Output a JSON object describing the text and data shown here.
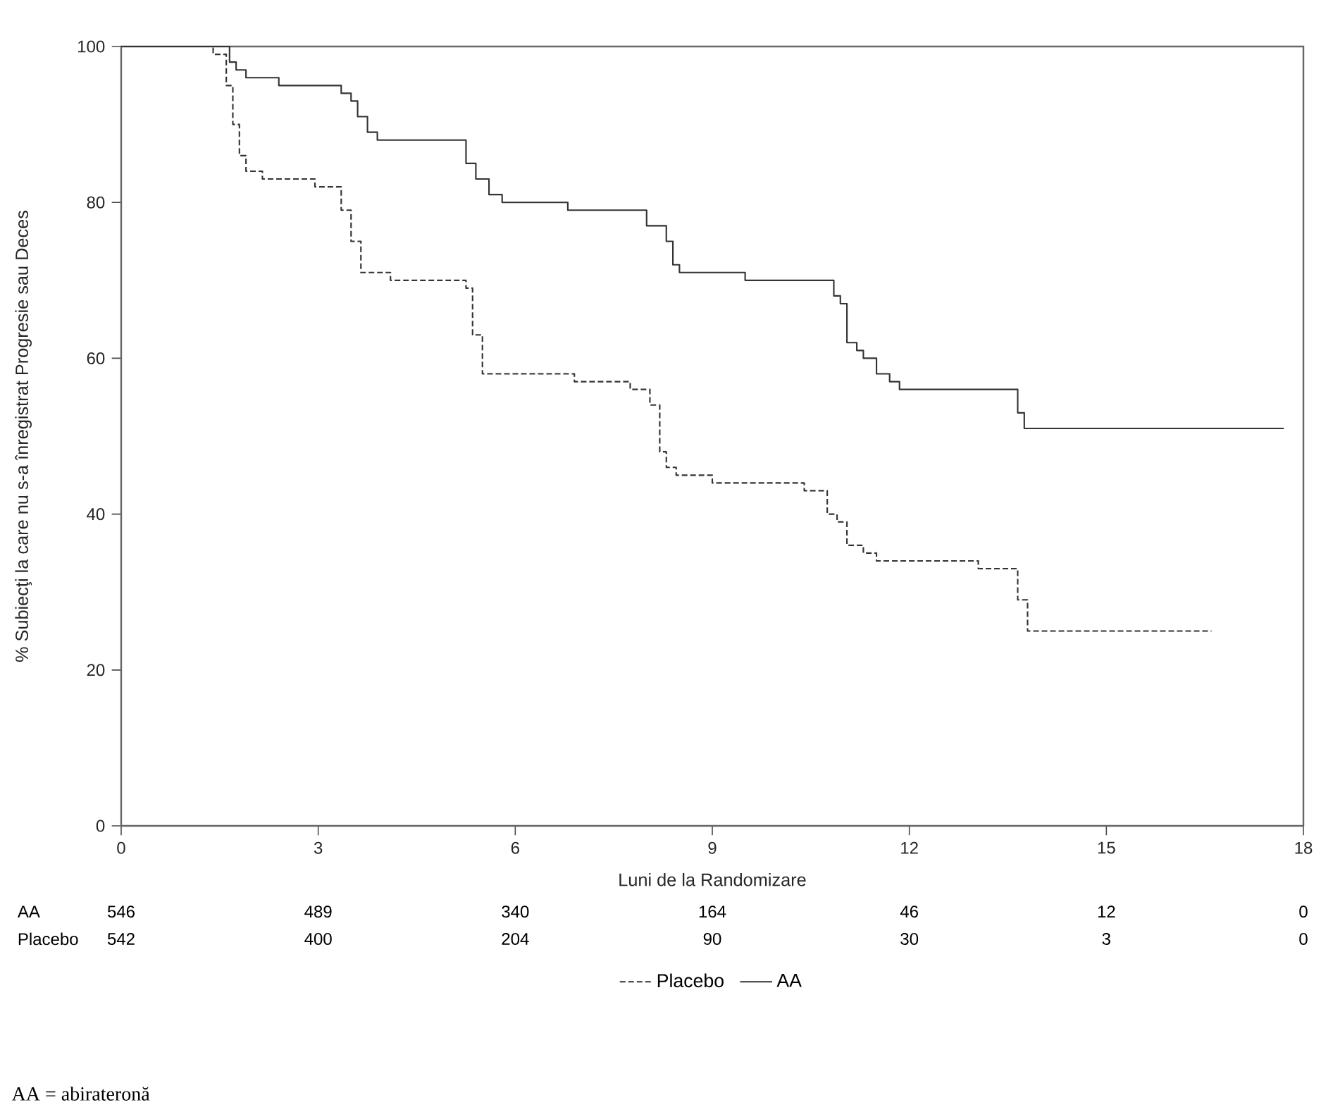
{
  "chart_data": {
    "type": "step",
    "xlabel": "Luni de la Randomizare",
    "ylabel": "% Subiecţi la care nu s-a înregistrat Progresie sau Deces",
    "xlim": [
      0,
      18
    ],
    "ylim": [
      0,
      100
    ],
    "xticks": [
      0,
      3,
      6,
      9,
      12,
      15,
      18
    ],
    "yticks": [
      0,
      20,
      40,
      60,
      80,
      100
    ],
    "grid": false,
    "legend": "bottom",
    "marker": "none",
    "series": [
      {
        "name": "Placebo",
        "color": "#333333",
        "line_style": "dashed",
        "x": [
          0,
          1.4,
          1.6,
          1.7,
          1.8,
          1.9,
          2.15,
          2.95,
          3.35,
          3.5,
          3.65,
          4.1,
          4.9,
          5.25,
          5.35,
          5.5,
          6.2,
          6.9,
          7.75,
          8.05,
          8.2,
          8.3,
          8.45,
          9.0,
          9.7,
          10.4,
          10.75,
          10.9,
          11.05,
          11.3,
          11.5,
          13.05,
          13.65,
          13.8,
          16.6
        ],
        "values": [
          100,
          99,
          95,
          90,
          86,
          84,
          83,
          82,
          79,
          75,
          71,
          70,
          70,
          69,
          63,
          58,
          58,
          57,
          56,
          54,
          48,
          46,
          45,
          44,
          44,
          43,
          40,
          39,
          36,
          35,
          34,
          33,
          29,
          25,
          25
        ]
      },
      {
        "name": "AA",
        "color": "#333333",
        "line_style": "solid",
        "x": [
          0,
          1.65,
          1.75,
          1.9,
          2.4,
          3.35,
          3.5,
          3.6,
          3.75,
          3.9,
          5.25,
          5.4,
          5.6,
          5.8,
          6.25,
          6.8,
          8.0,
          8.3,
          8.4,
          8.5,
          9.5,
          10.45,
          10.85,
          10.95,
          11.05,
          11.2,
          11.3,
          11.5,
          11.7,
          11.85,
          13.65,
          13.75,
          17.7
        ],
        "values": [
          100,
          98,
          97,
          96,
          95,
          94,
          93,
          91,
          89,
          88,
          85,
          83,
          81,
          80,
          80,
          79,
          77,
          75,
          72,
          71,
          70,
          70,
          68,
          67,
          62,
          61,
          60,
          58,
          57,
          56,
          53,
          51,
          51
        ]
      }
    ],
    "annotations": [
      "AA",
      "546",
      "489",
      "340",
      "164",
      "46",
      "12",
      "0",
      "Placebo",
      "542",
      "400",
      "204",
      "90",
      "30",
      "3",
      "0",
      "AA = abirateronă"
    ]
  }
}
